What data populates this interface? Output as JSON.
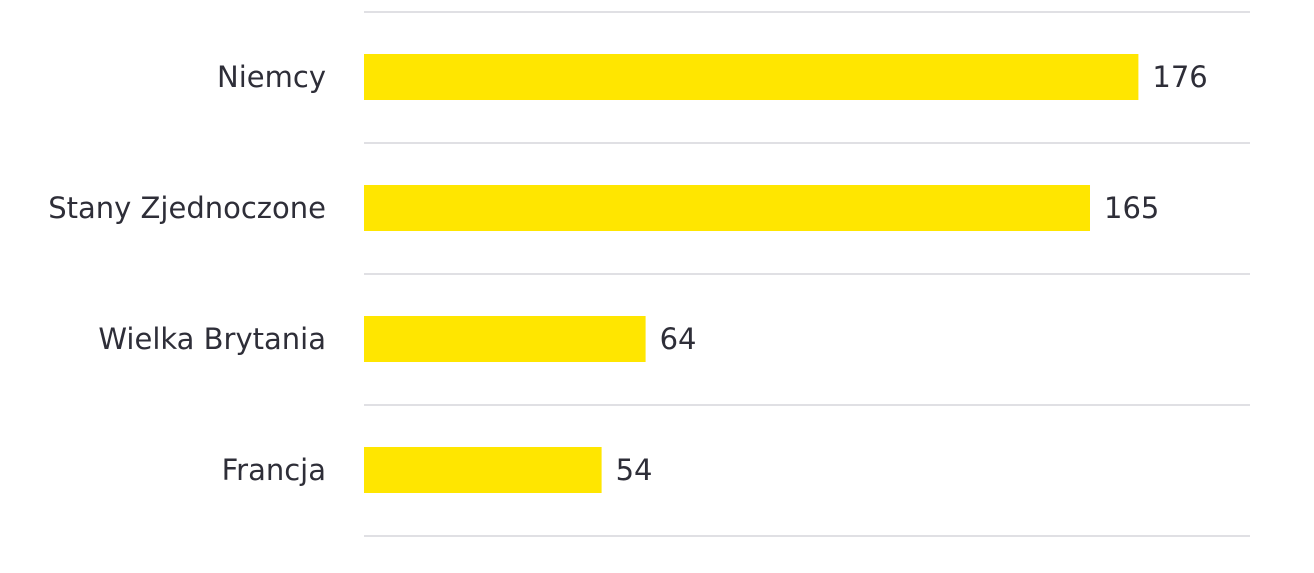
{
  "chart_data": {
    "type": "bar",
    "orientation": "horizontal",
    "categories": [
      "Niemcy",
      "Stany Zjednoczone",
      "Wielka Brytania",
      "Francja"
    ],
    "values": [
      176,
      165,
      64,
      54
    ],
    "title": "",
    "xlabel": "",
    "ylabel": "",
    "xlim": [
      0,
      200
    ],
    "grid": true,
    "legend": "none",
    "colors": {
      "bar": "#ffe600",
      "text": "#2e2e38",
      "grid": "#e0e0e4"
    }
  }
}
